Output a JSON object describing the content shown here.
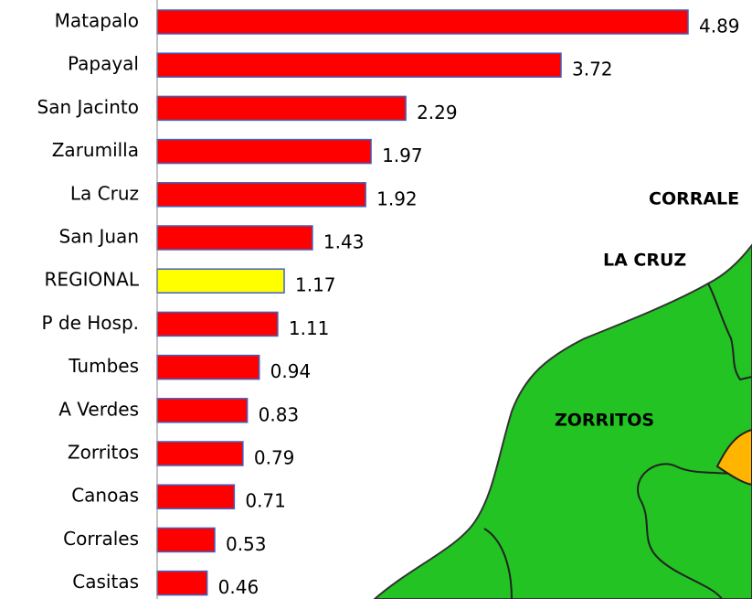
{
  "chart_data": {
    "type": "barh",
    "categories": [
      "Matapalo",
      "Papayal",
      "San Jacinto",
      "Zarumilla",
      "La Cruz",
      "San Juan",
      "REGIONAL",
      "P de  Hosp.",
      "Tumbes",
      "A Verdes",
      "Zorritos",
      "Canoas",
      "Corrales",
      "Casitas"
    ],
    "values": [
      4.89,
      3.72,
      2.29,
      1.97,
      1.92,
      1.43,
      1.17,
      1.11,
      0.94,
      0.83,
      0.79,
      0.71,
      0.53,
      0.46
    ],
    "colors": [
      "#ff0000",
      "#ff0000",
      "#ff0000",
      "#ff0000",
      "#ff0000",
      "#ff0000",
      "#ffff00",
      "#ff0000",
      "#ff0000",
      "#ff0000",
      "#ff0000",
      "#ff0000",
      "#ff0000",
      "#ff0000"
    ],
    "bar_edge_color": "#4060c0"
  },
  "map": {
    "labels": [
      "CORRALE",
      "LA CRUZ",
      "ZORRITOS"
    ]
  }
}
